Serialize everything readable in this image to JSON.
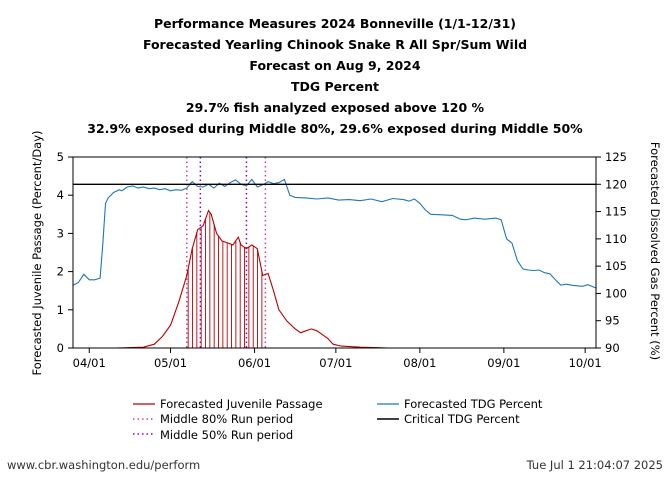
{
  "title_lines": [
    "Performance Measures 2024 Bonneville (1/1-12/31)",
    "Forecasted Yearling Chinook Snake R All Spr/Sum Wild",
    "Forecast on Aug 9, 2024",
    "TDG Percent",
    "29.7% fish analyzed exposed above 120 %",
    "32.9% exposed during Middle 80%, 29.6% exposed during Middle 50%"
  ],
  "footer": {
    "left": "www.cbr.washington.edu/perform",
    "right": "Tue Jul  1 21:04:07 2025"
  },
  "colors": {
    "passage": "#bb0000",
    "tdg": "#1f77b4",
    "critical": "#000000",
    "middle80": "#cc44aa",
    "middle50": "#8800cc"
  },
  "chart_data": {
    "type": "line",
    "ylabel_left": "Forecasted Juvenile Passage (Percent/Day)",
    "ylabel_right": "Forecasted Dissolved Gas Percent (%)",
    "ylim_left": [
      0,
      5
    ],
    "ylim_right": [
      90,
      125
    ],
    "xlim_day": [
      -6,
      187
    ],
    "x_ticks": [
      {
        "label": "04/01",
        "day": 0
      },
      {
        "label": "05/01",
        "day": 30
      },
      {
        "label": "06/01",
        "day": 61
      },
      {
        "label": "07/01",
        "day": 91
      },
      {
        "label": "08/01",
        "day": 122
      },
      {
        "label": "09/01",
        "day": 153
      },
      {
        "label": "10/01",
        "day": 183
      }
    ],
    "y_ticks_left": [
      0,
      1,
      2,
      3,
      4,
      5
    ],
    "y_ticks_right": [
      90,
      95,
      100,
      105,
      110,
      115,
      120,
      125
    ],
    "critical_tdg": 120,
    "middle80_days": [
      36,
      65
    ],
    "middle50_days": [
      41,
      58
    ],
    "legend": {
      "passage": "Forecasted Juvenile Passage",
      "middle80": "Middle 80% Run period",
      "middle50": "Middle 50% Run period",
      "tdg": "Forecasted TDG Percent",
      "critical": "Critical TDG Percent"
    },
    "series": [
      {
        "name": "Forecasted Juvenile Passage",
        "axis": "left",
        "points": [
          [
            -6,
            0
          ],
          [
            10,
            0
          ],
          [
            20,
            0.02
          ],
          [
            24,
            0.1
          ],
          [
            27,
            0.3
          ],
          [
            30,
            0.6
          ],
          [
            33,
            1.2
          ],
          [
            36,
            1.9
          ],
          [
            38,
            2.6
          ],
          [
            40,
            3.1
          ],
          [
            42,
            3.2
          ],
          [
            44,
            3.6
          ],
          [
            45,
            3.5
          ],
          [
            47,
            3.0
          ],
          [
            49,
            2.8
          ],
          [
            51,
            2.75
          ],
          [
            53,
            2.7
          ],
          [
            55,
            2.9
          ],
          [
            56,
            2.7
          ],
          [
            58,
            2.6
          ],
          [
            60,
            2.7
          ],
          [
            62,
            2.6
          ],
          [
            64,
            1.9
          ],
          [
            66,
            1.95
          ],
          [
            68,
            1.5
          ],
          [
            70,
            1.0
          ],
          [
            73,
            0.7
          ],
          [
            76,
            0.5
          ],
          [
            78,
            0.4
          ],
          [
            80,
            0.45
          ],
          [
            82,
            0.5
          ],
          [
            84,
            0.45
          ],
          [
            86,
            0.35
          ],
          [
            88,
            0.25
          ],
          [
            90,
            0.1
          ],
          [
            93,
            0.05
          ],
          [
            100,
            0.02
          ],
          [
            110,
            0
          ],
          [
            187,
            0
          ]
        ]
      },
      {
        "name": "Forecasted TDG Percent",
        "axis": "right",
        "points": [
          [
            -6,
            101.5
          ],
          [
            -4,
            102
          ],
          [
            -2,
            103.5
          ],
          [
            0,
            102.5
          ],
          [
            2,
            102.5
          ],
          [
            4,
            102.8
          ],
          [
            5,
            109
          ],
          [
            6,
            116.5
          ],
          [
            7,
            117.5
          ],
          [
            9,
            118.5
          ],
          [
            11,
            119
          ],
          [
            12,
            118.8
          ],
          [
            14,
            119.5
          ],
          [
            16,
            119.7
          ],
          [
            18,
            119.3
          ],
          [
            20,
            119.5
          ],
          [
            22,
            119.2
          ],
          [
            24,
            119.3
          ],
          [
            26,
            119
          ],
          [
            28,
            119.2
          ],
          [
            30,
            118.8
          ],
          [
            32,
            119
          ],
          [
            34,
            118.9
          ],
          [
            36,
            119.3
          ],
          [
            38,
            120.5
          ],
          [
            40,
            119.6
          ],
          [
            42,
            119.5
          ],
          [
            44,
            120
          ],
          [
            46,
            119.3
          ],
          [
            48,
            120.2
          ],
          [
            50,
            119.6
          ],
          [
            52,
            120.3
          ],
          [
            54,
            120.8
          ],
          [
            56,
            120
          ],
          [
            58,
            119.7
          ],
          [
            60,
            120.9
          ],
          [
            62,
            119.5
          ],
          [
            64,
            119.9
          ],
          [
            66,
            120.5
          ],
          [
            68,
            120.1
          ],
          [
            70,
            120.3
          ],
          [
            72,
            120.9
          ],
          [
            74,
            118
          ],
          [
            76,
            117.6
          ],
          [
            80,
            117.5
          ],
          [
            84,
            117.3
          ],
          [
            88,
            117.5
          ],
          [
            92,
            117.1
          ],
          [
            96,
            117.2
          ],
          [
            100,
            117.0
          ],
          [
            104,
            117.3
          ],
          [
            108,
            116.8
          ],
          [
            112,
            117.4
          ],
          [
            116,
            117.2
          ],
          [
            118,
            116.9
          ],
          [
            120,
            117.3
          ],
          [
            122,
            116.5
          ],
          [
            124,
            115.3
          ],
          [
            126,
            114.5
          ],
          [
            130,
            114.4
          ],
          [
            134,
            114.3
          ],
          [
            137,
            113.6
          ],
          [
            139,
            113.5
          ],
          [
            142,
            113.8
          ],
          [
            146,
            113.6
          ],
          [
            150,
            113.8
          ],
          [
            152,
            113.5
          ],
          [
            154,
            110
          ],
          [
            156,
            109.2
          ],
          [
            158,
            106
          ],
          [
            160,
            104.5
          ],
          [
            162,
            104.3
          ],
          [
            164,
            104.2
          ],
          [
            166,
            104.3
          ],
          [
            168,
            103.8
          ],
          [
            170,
            103.6
          ],
          [
            172,
            102.5
          ],
          [
            174,
            101.5
          ],
          [
            176,
            101.7
          ],
          [
            178,
            101.5
          ],
          [
            180,
            101.4
          ],
          [
            182,
            101.3
          ],
          [
            184,
            101.6
          ],
          [
            187,
            101.0
          ]
        ]
      }
    ]
  }
}
